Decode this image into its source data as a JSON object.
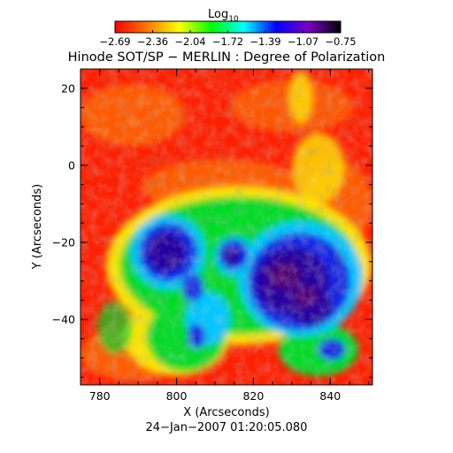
{
  "colorbar": {
    "label_main": "Log",
    "label_sub": "10",
    "ticks": [
      "−2.69",
      "−2.36",
      "−2.04",
      "−1.72",
      "−1.39",
      "−1.07",
      "−0.75"
    ],
    "colors": [
      "#ff0000",
      "#ff7a00",
      "#ffff00",
      "#00ff00",
      "#00ffff",
      "#0000ff",
      "#7a00c8",
      "#000000"
    ]
  },
  "title": "Hinode SOT/SP − MERLIN : Degree of Polarization",
  "x_axis": {
    "label": "X (Arcseconds)",
    "ticks": [
      "780",
      "800",
      "820",
      "840"
    ],
    "range": [
      775,
      851
    ]
  },
  "y_axis": {
    "label": "Y (Arcseconds)",
    "ticks": [
      "20",
      "0",
      "−20",
      "−40"
    ],
    "range": [
      -57,
      25
    ]
  },
  "timestamp": "24−Jan−2007 01:20:05.080",
  "image_colors": {
    "red": "#ff1400",
    "orange": "#ff8c00",
    "yellow": "#ffe600",
    "green": "#00dc28",
    "cyan": "#00c8ff",
    "blue": "#1428e6",
    "indigo": "#2800a0",
    "purple": "#500078"
  }
}
